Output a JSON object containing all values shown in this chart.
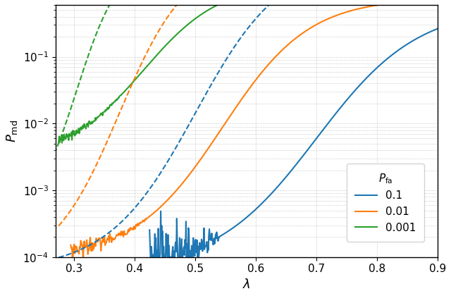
{
  "xlabel": "$\\lambda$",
  "ylabel": "$P_{\\mathrm{md}}$",
  "xlim": [
    0.27,
    0.9
  ],
  "ylim": [
    0.0001,
    0.6
  ],
  "colors": {
    "blue": "#1f77b4",
    "orange": "#ff7f0e",
    "green": "#2ca02c"
  },
  "legend_title": "$P_{\\mathrm{fa}}$",
  "legend_labels": [
    "0.1",
    "0.01",
    "0.001"
  ],
  "xticks": [
    0.3,
    0.4,
    0.5,
    0.6,
    0.7,
    0.8,
    0.9
  ],
  "figsize": [
    6.4,
    4.2
  ],
  "dpi": 100,
  "background": "#ffffff",
  "grid_color": "#aaaaaa",
  "grid_style": "dotted"
}
